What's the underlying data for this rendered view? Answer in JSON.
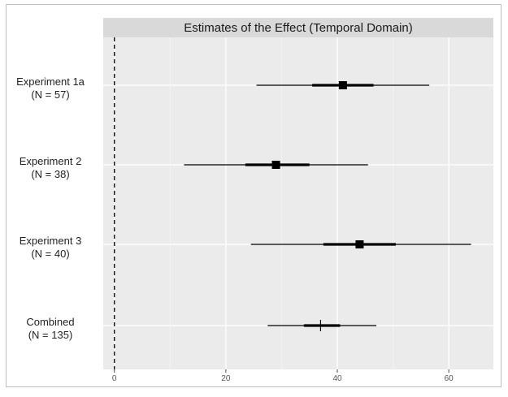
{
  "chart_data": {
    "type": "forest",
    "title": "Estimates of the Effect (Temporal Domain)",
    "xlim": [
      -2,
      68
    ],
    "x_ticks": [
      "0",
      "20",
      "40",
      "60"
    ],
    "reference_line": 0,
    "grid": true,
    "rows": [
      {
        "label": "Experiment 1a",
        "n_label": "(N = 57)",
        "estimate": 41,
        "inner": [
          35.5,
          46.5
        ],
        "outer": [
          25.5,
          56.5
        ],
        "marker": "square"
      },
      {
        "label": "Experiment 2",
        "n_label": "(N = 38)",
        "estimate": 29,
        "inner": [
          23.5,
          35
        ],
        "outer": [
          12.5,
          45.5
        ],
        "marker": "square"
      },
      {
        "label": "Experiment 3",
        "n_label": "(N = 40)",
        "estimate": 44,
        "inner": [
          37.5,
          50.5
        ],
        "outer": [
          24.5,
          64
        ],
        "marker": "square"
      },
      {
        "label": "Combined",
        "n_label": "(N = 135)",
        "estimate": 37,
        "inner": [
          34,
          40.5
        ],
        "outer": [
          27.5,
          47
        ],
        "marker": "cross"
      }
    ]
  }
}
